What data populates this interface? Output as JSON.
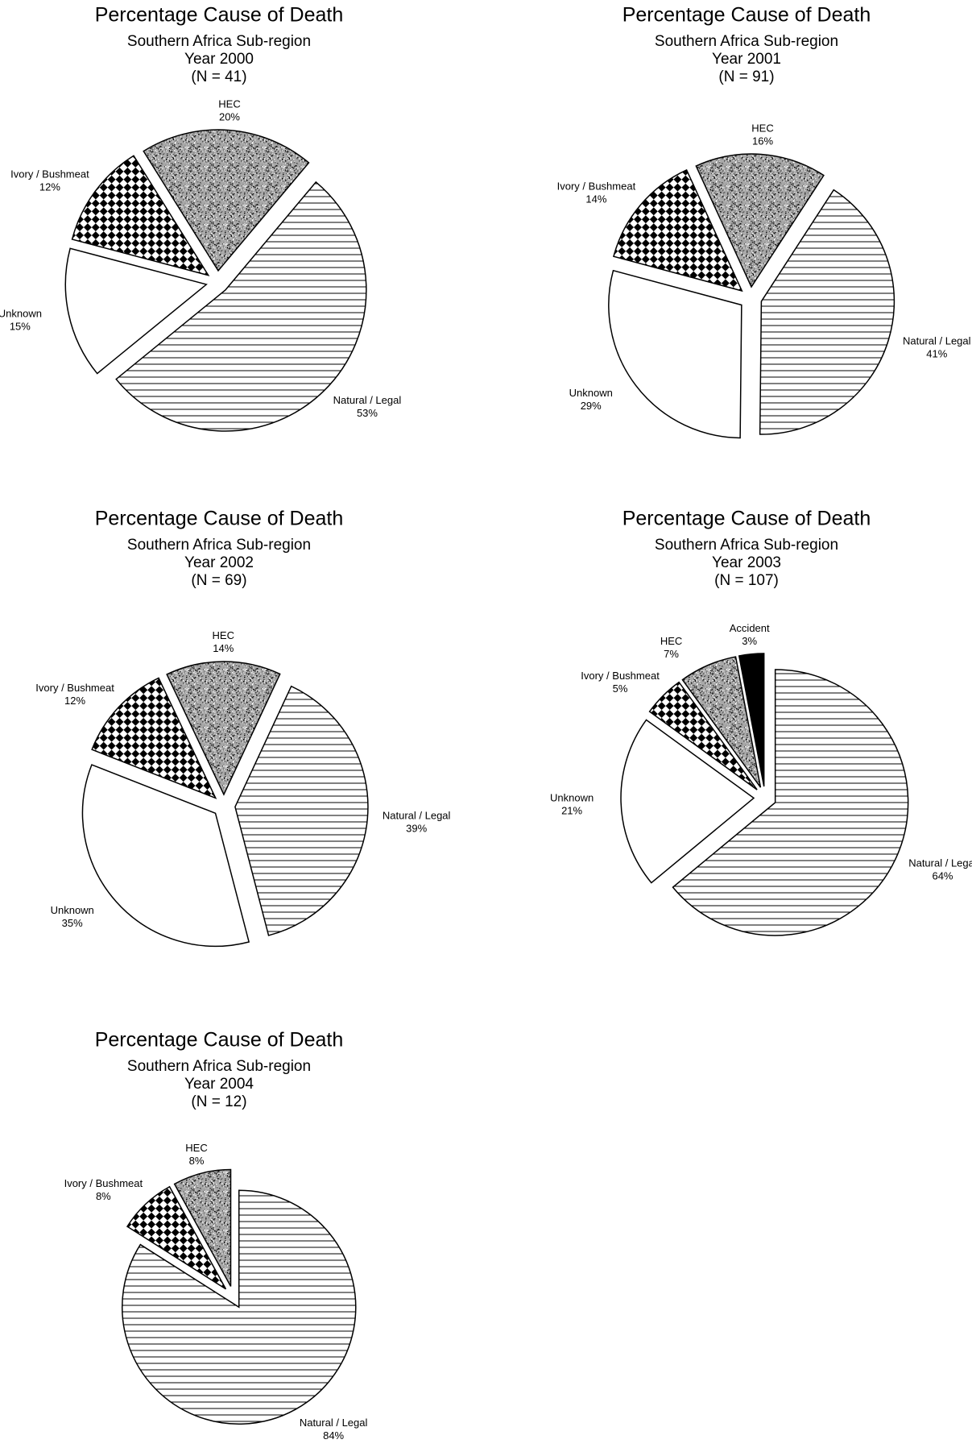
{
  "chart_data": [
    {
      "type": "pie",
      "title": "Percentage Cause of Death",
      "subtitle_lines": [
        "Southern Africa Sub-region",
        "Year 2000",
        "(N = 41)"
      ],
      "categories": [
        "Natural / Legal",
        "Unknown",
        "Ivory / Bushmeat",
        "HEC"
      ],
      "values": [
        53,
        15,
        12,
        20
      ],
      "value_labels": [
        "53%",
        "15%",
        "12%",
        "20%"
      ],
      "patterns": [
        "horizontal-lines",
        "none",
        "checker",
        "speckle"
      ],
      "exploded": true
    },
    {
      "type": "pie",
      "title": "Percentage Cause of Death",
      "subtitle_lines": [
        "Southern Africa Sub-region",
        "Year 2001",
        "(N = 91)"
      ],
      "categories": [
        "Natural / Legal",
        "Unknown",
        "Ivory / Bushmeat",
        "HEC"
      ],
      "values": [
        41,
        29,
        14,
        16
      ],
      "value_labels": [
        "41%",
        "29%",
        "14%",
        "16%"
      ],
      "patterns": [
        "horizontal-lines",
        "none",
        "checker",
        "speckle"
      ],
      "exploded": true
    },
    {
      "type": "pie",
      "title": "Percentage Cause of Death",
      "subtitle_lines": [
        "Southern Africa Sub-region",
        "Year 2002",
        "(N = 69)"
      ],
      "categories": [
        "Natural / Legal",
        "Unknown",
        "Ivory / Bushmeat",
        "HEC"
      ],
      "values": [
        39,
        35,
        12,
        14
      ],
      "value_labels": [
        "39%",
        "35%",
        "12%",
        "14%"
      ],
      "patterns": [
        "horizontal-lines",
        "none",
        "checker",
        "speckle"
      ],
      "exploded": true
    },
    {
      "type": "pie",
      "title": "Percentage Cause of Death",
      "subtitle_lines": [
        "Southern Africa Sub-region",
        "Year 2003",
        "(N = 107)"
      ],
      "categories": [
        "Natural / Legal",
        "Unknown",
        "Ivory / Bushmeat",
        "HEC",
        "Accident"
      ],
      "values": [
        64,
        21,
        5,
        7,
        3
      ],
      "value_labels": [
        "64%",
        "21%",
        "5%",
        "7%",
        "3%"
      ],
      "patterns": [
        "horizontal-lines",
        "none",
        "checker",
        "speckle",
        "solid-black"
      ],
      "exploded": true
    },
    {
      "type": "pie",
      "title": "Percentage Cause of Death",
      "subtitle_lines": [
        "Southern Africa Sub-region",
        "Year 2004",
        "(N = 12)"
      ],
      "categories": [
        "Natural / Legal",
        "Ivory / Bushmeat",
        "HEC"
      ],
      "values": [
        84,
        8,
        8
      ],
      "value_labels": [
        "84%",
        "8%",
        "8%"
      ],
      "patterns": [
        "horizontal-lines",
        "checker",
        "speckle"
      ],
      "exploded": true
    }
  ]
}
